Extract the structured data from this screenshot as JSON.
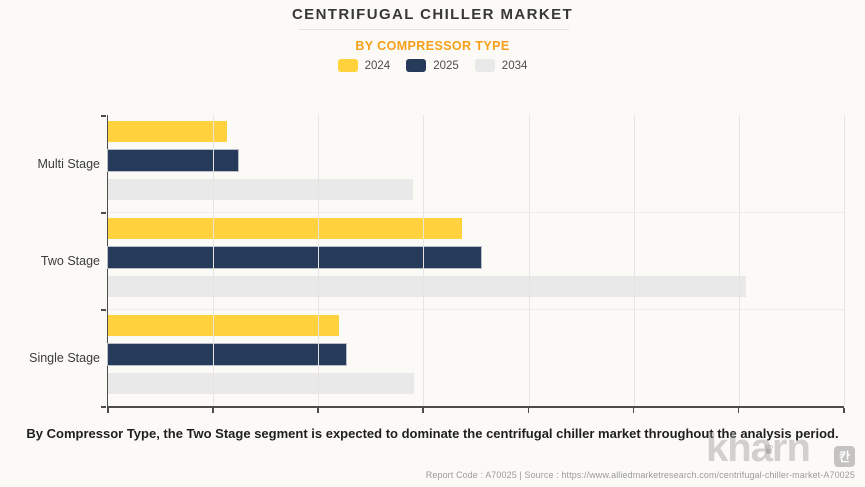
{
  "header": {
    "title": "CENTRIFUGAL CHILLER MARKET",
    "subtitle": "BY COMPRESSOR TYPE"
  },
  "colors": {
    "background": "#FCFAF6",
    "subtitle_accent": "#F6A01A",
    "series_2024": "#FFD23E",
    "series_2025": "#263A59",
    "series_2034": "#E9E9E9",
    "axis": "#4C4C4C",
    "gridline": "#E8E5E0"
  },
  "chart_data": {
    "type": "bar",
    "orientation": "horizontal",
    "title": "CENTRIFUGAL CHILLER MARKET",
    "subtitle": "BY COMPRESSOR TYPE",
    "categories": [
      "Multi Stage",
      "Two Stage",
      "Single Stage"
    ],
    "series": [
      {
        "name": "2024",
        "color": "#FFD23E",
        "values": [
          1.13,
          3.37,
          2.2
        ]
      },
      {
        "name": "2025",
        "color": "#263A59",
        "values": [
          1.24,
          3.55,
          2.26
        ]
      },
      {
        "name": "2034",
        "color": "#E9E9E9",
        "values": [
          2.9,
          6.07,
          2.91
        ]
      }
    ],
    "xlabel": "",
    "ylabel": "",
    "xlim": [
      0,
      7
    ],
    "x_axis_tick_labels_visible": false,
    "gridlines": "vertical",
    "legend_position": "top"
  },
  "caption": {
    "text": "By Compressor Type, the Two Stage segment is expected to dominate the centrifugal chiller market throughout the analysis period."
  },
  "footer": {
    "text": "Report Code : A70025  |  Source : https://www.alliedmarketresearch.com/centrifugal-chiller-market-A70025"
  },
  "watermark": {
    "text": "kharn",
    "badge": "칸",
    "crown_icon": "♛"
  }
}
